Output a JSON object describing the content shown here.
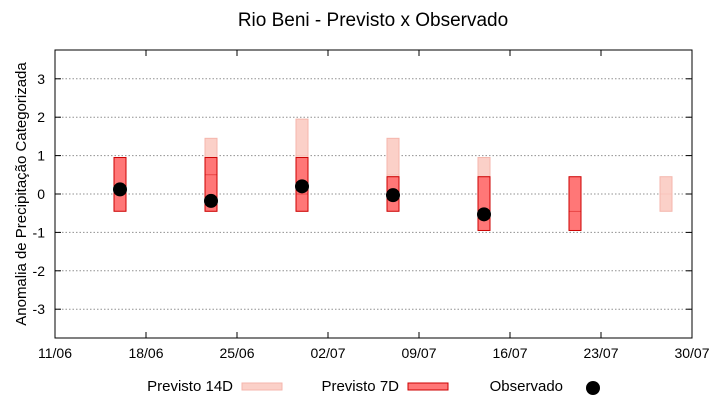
{
  "chart_data": {
    "type": "boxplot",
    "title": "Rio Beni - Previsto x Observado",
    "ylabel": "Anomalia de Precipitação Categorizada",
    "xlabel": "",
    "ylim": [
      -3.75,
      3.75
    ],
    "yticks": [
      -3,
      -2,
      -1,
      0,
      1,
      2,
      3
    ],
    "xlim": [
      "2024-06-11",
      "2024-07-30"
    ],
    "xticks": [
      {
        "date": "2024-06-11",
        "label": "11/06"
      },
      {
        "date": "2024-06-18",
        "label": "18/06"
      },
      {
        "date": "2024-06-25",
        "label": "25/06"
      },
      {
        "date": "2024-07-02",
        "label": "02/07"
      },
      {
        "date": "2024-07-09",
        "label": "09/07"
      },
      {
        "date": "2024-07-16",
        "label": "16/07"
      },
      {
        "date": "2024-07-23",
        "label": "23/07"
      },
      {
        "date": "2024-07-30",
        "label": "30/07"
      }
    ],
    "grid": true,
    "legend_position": "bottom",
    "series": [
      {
        "name": "Previsto 14D",
        "color": "#f4b6ac",
        "fill": "#fbd0c8",
        "boxes": [
          {
            "date": "2024-06-23",
            "low": -0.45,
            "mid": 0.5,
            "high": 1.45
          },
          {
            "date": "2024-06-30",
            "low": -0.45,
            "mid": 1.0,
            "high": 1.95
          },
          {
            "date": "2024-07-07",
            "low": 0.45,
            "mid": 0.5,
            "high": 1.45
          },
          {
            "date": "2024-07-14",
            "low": -0.45,
            "mid": 0.0,
            "high": 0.95
          },
          {
            "date": "2024-07-28",
            "low": -0.45,
            "mid": 0.0,
            "high": 0.45
          }
        ]
      },
      {
        "name": "Previsto 7D",
        "color": "#cc0000",
        "fill": "#ff7777",
        "boxes": [
          {
            "date": "2024-06-16",
            "low": -0.45,
            "mid": 0.0,
            "high": 0.95
          },
          {
            "date": "2024-06-23",
            "low": -0.45,
            "mid": 0.5,
            "high": 0.95
          },
          {
            "date": "2024-06-30",
            "low": -0.45,
            "mid": 0.0,
            "high": 0.95
          },
          {
            "date": "2024-07-07",
            "low": -0.45,
            "mid": 0.0,
            "high": 0.45
          },
          {
            "date": "2024-07-14",
            "low": -0.95,
            "mid": -0.5,
            "high": 0.45
          },
          {
            "date": "2024-07-21",
            "low": -0.95,
            "mid": -0.45,
            "high": 0.45
          }
        ]
      },
      {
        "name": "Observado",
        "color": "#000000",
        "points": [
          {
            "date": "2024-06-16",
            "value": 0.12
          },
          {
            "date": "2024-06-23",
            "value": -0.18
          },
          {
            "date": "2024-06-30",
            "value": 0.2
          },
          {
            "date": "2024-07-07",
            "value": -0.03
          },
          {
            "date": "2024-07-14",
            "value": -0.53
          }
        ]
      }
    ]
  }
}
